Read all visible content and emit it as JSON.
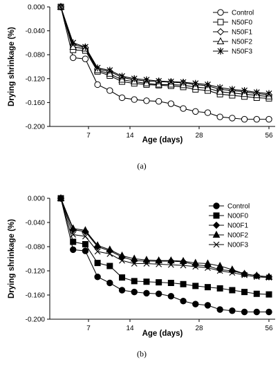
{
  "chart_data": [
    {
      "type": "line",
      "caption": "(a)",
      "xlabel": "Age (days)",
      "ylabel": "Drying shrinkage (%)",
      "xlim": [
        0,
        56
      ],
      "ylim": [
        -0.2,
        0.0
      ],
      "xticks": [
        "7",
        "14",
        "28",
        "56"
      ],
      "yticks": [
        "0.000",
        "-0.040",
        "-0.080",
        "-0.120",
        "-0.160",
        "-0.200"
      ],
      "legend_position": "top-right",
      "x": [
        1,
        3,
        5,
        7,
        9,
        11,
        13,
        15,
        17,
        19,
        21,
        23,
        25,
        27,
        29,
        31,
        33,
        35
      ],
      "series": [
        {
          "name": "Control",
          "marker": "circle-open",
          "values": [
            0.0,
            -0.085,
            -0.087,
            -0.13,
            -0.14,
            -0.152,
            -0.155,
            -0.157,
            -0.158,
            -0.162,
            -0.17,
            -0.175,
            -0.177,
            -0.184,
            -0.186,
            -0.188,
            -0.188,
            -0.188
          ]
        },
        {
          "name": "N50F0",
          "marker": "square-open",
          "values": [
            0.0,
            -0.072,
            -0.073,
            -0.108,
            -0.115,
            -0.125,
            -0.128,
            -0.13,
            -0.131,
            -0.132,
            -0.134,
            -0.138,
            -0.14,
            -0.146,
            -0.148,
            -0.15,
            -0.152,
            -0.153
          ]
        },
        {
          "name": "N50F1",
          "marker": "diamond-open",
          "values": [
            0.0,
            -0.063,
            -0.068,
            -0.104,
            -0.108,
            -0.118,
            -0.122,
            -0.124,
            -0.125,
            -0.126,
            -0.127,
            -0.13,
            -0.132,
            -0.138,
            -0.14,
            -0.142,
            -0.145,
            -0.147
          ]
        },
        {
          "name": "N50F2",
          "marker": "triangle-open",
          "values": [
            0.0,
            -0.067,
            -0.07,
            -0.106,
            -0.112,
            -0.122,
            -0.125,
            -0.128,
            -0.13,
            -0.13,
            -0.131,
            -0.134,
            -0.136,
            -0.142,
            -0.144,
            -0.146,
            -0.148,
            -0.15
          ]
        },
        {
          "name": "N50F3",
          "marker": "asterisk",
          "values": [
            0.0,
            -0.06,
            -0.067,
            -0.102,
            -0.106,
            -0.116,
            -0.12,
            -0.122,
            -0.124,
            -0.125,
            -0.126,
            -0.128,
            -0.13,
            -0.135,
            -0.138,
            -0.14,
            -0.143,
            -0.145
          ]
        }
      ]
    },
    {
      "type": "line",
      "caption": "(b)",
      "xlabel": "Age (days)",
      "ylabel": "Drying shrinkage (%)",
      "xlim": [
        0,
        56
      ],
      "ylim": [
        -0.2,
        0.0
      ],
      "xticks": [
        "7",
        "14",
        "28",
        "56"
      ],
      "yticks": [
        "0.000",
        "-0.040",
        "-0.080",
        "-0.120",
        "-0.160",
        "-0.200"
      ],
      "legend_position": "top-right",
      "x": [
        1,
        3,
        5,
        7,
        9,
        11,
        13,
        15,
        17,
        19,
        21,
        23,
        25,
        27,
        29,
        31,
        33,
        35
      ],
      "series": [
        {
          "name": "Control",
          "marker": "circle-filled",
          "values": [
            0.0,
            -0.085,
            -0.087,
            -0.13,
            -0.14,
            -0.152,
            -0.155,
            -0.157,
            -0.158,
            -0.162,
            -0.17,
            -0.175,
            -0.177,
            -0.184,
            -0.186,
            -0.188,
            -0.188,
            -0.188
          ]
        },
        {
          "name": "N00F0",
          "marker": "square-filled",
          "values": [
            0.0,
            -0.072,
            -0.076,
            -0.107,
            -0.112,
            -0.131,
            -0.137,
            -0.138,
            -0.139,
            -0.14,
            -0.142,
            -0.145,
            -0.147,
            -0.149,
            -0.152,
            -0.155,
            -0.158,
            -0.159
          ]
        },
        {
          "name": "N00F1",
          "marker": "diamond-filled",
          "values": [
            0.0,
            -0.052,
            -0.055,
            -0.08,
            -0.087,
            -0.097,
            -0.103,
            -0.104,
            -0.104,
            -0.104,
            -0.105,
            -0.11,
            -0.112,
            -0.118,
            -0.12,
            -0.125,
            -0.128,
            -0.13
          ]
        },
        {
          "name": "N00F2",
          "marker": "triangle-filled",
          "values": [
            0.0,
            -0.05,
            -0.053,
            -0.078,
            -0.085,
            -0.095,
            -0.1,
            -0.102,
            -0.103,
            -0.103,
            -0.104,
            -0.107,
            -0.108,
            -0.112,
            -0.118,
            -0.125,
            -0.128,
            -0.13
          ]
        },
        {
          "name": "N00F3",
          "marker": "x-cross",
          "values": [
            0.0,
            -0.06,
            -0.063,
            -0.088,
            -0.092,
            -0.103,
            -0.108,
            -0.108,
            -0.109,
            -0.11,
            -0.111,
            -0.113,
            -0.115,
            -0.12,
            -0.123,
            -0.127,
            -0.13,
            -0.131
          ]
        }
      ]
    }
  ]
}
